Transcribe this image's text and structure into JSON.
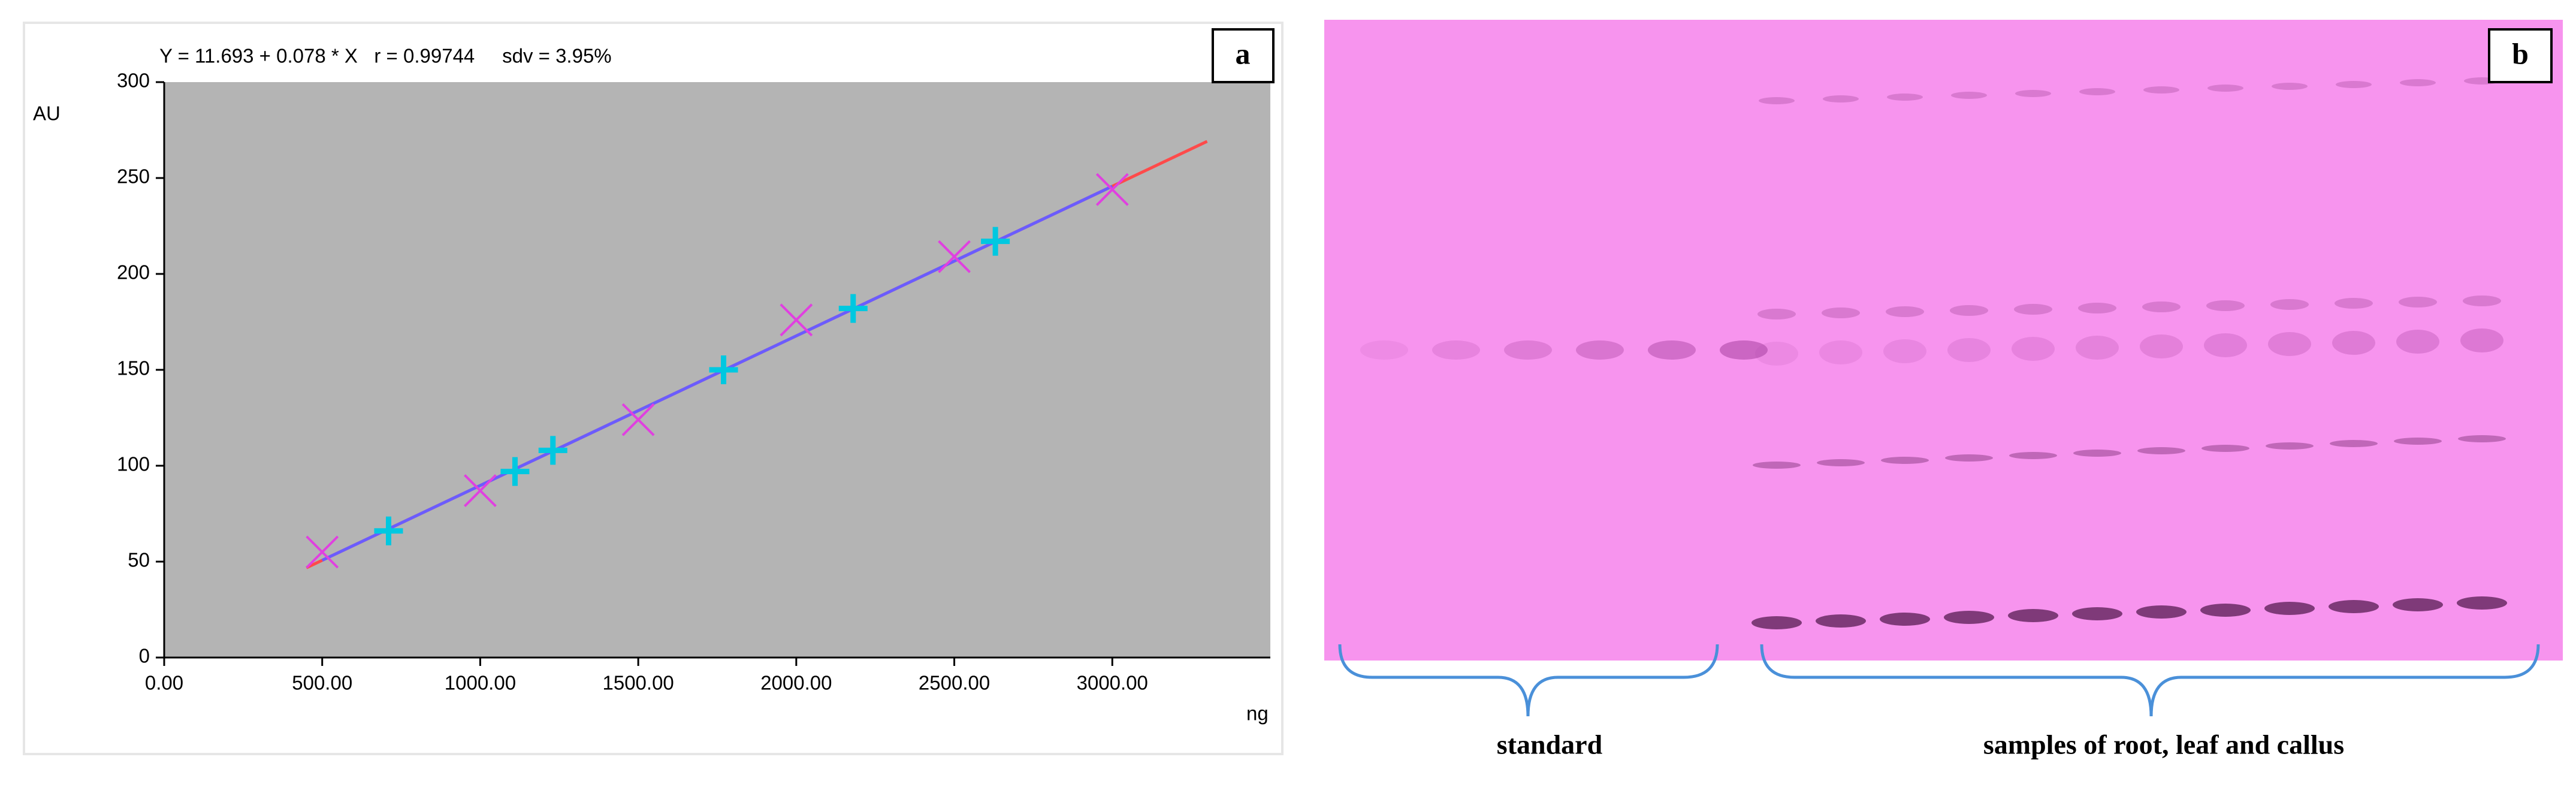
{
  "chart_data": {
    "type": "scatter",
    "title": "Y = 11.693 + 0.078 * X   r = 0.99744     sdv = 3.95%",
    "ylabel": "AU",
    "xlabel": "ng",
    "xlim": [
      0,
      3500
    ],
    "ylim": [
      0,
      300
    ],
    "xticks": [
      {
        "value": 0,
        "label": "0.00"
      },
      {
        "value": 500,
        "label": "500.00"
      },
      {
        "value": 1000,
        "label": "1000.00"
      },
      {
        "value": 1500,
        "label": "1500.00"
      },
      {
        "value": 2000,
        "label": "2000.00"
      },
      {
        "value": 2500,
        "label": "2500.00"
      },
      {
        "value": 3000,
        "label": "3000.00"
      }
    ],
    "yticks": [
      0,
      50,
      100,
      150,
      200,
      250,
      300
    ],
    "series": [
      {
        "color": "#e040e0",
        "marker": "x",
        "x": [
          500,
          1000,
          1500,
          2000,
          2500,
          3000
        ],
        "values": [
          55,
          87,
          124,
          176,
          209,
          244
        ]
      },
      {
        "color": "#00c8e0",
        "marker": "plus",
        "x": [
          710,
          1110,
          1230,
          1770,
          2180,
          2630
        ],
        "values": [
          66,
          97,
          108,
          150,
          182,
          217
        ]
      }
    ],
    "lines": [
      {
        "color": "#ff4a4a",
        "x": [
          450,
          3300
        ],
        "values": [
          46.8,
          269.1
        ]
      },
      {
        "color": "#6a5cff",
        "x": [
          500,
          3000
        ],
        "values": [
          50.7,
          245.7
        ]
      }
    ]
  },
  "panel_labels": [
    "a",
    "b"
  ],
  "plate": {
    "labels": [
      "standard",
      "samples of root, leaf and callus"
    ]
  }
}
